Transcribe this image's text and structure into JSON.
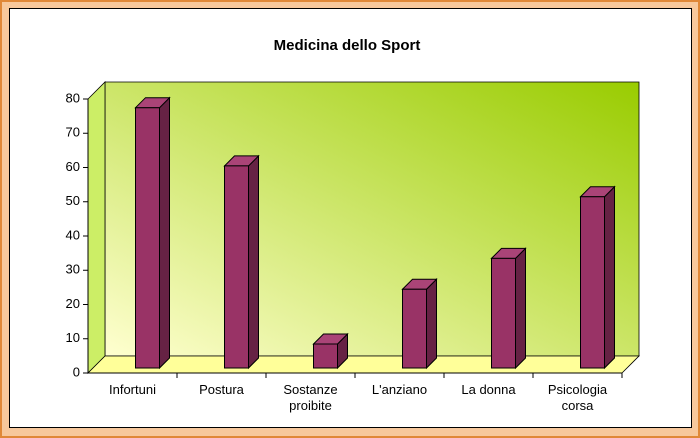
{
  "chart_data": {
    "type": "bar3d",
    "title": "Medicina dello Sport",
    "categories": [
      "Infortuni",
      "Postura",
      "Sostanze proibite",
      "L'anziano",
      "La donna",
      "Psicologia corsa"
    ],
    "values": [
      76,
      59,
      7,
      23,
      32,
      50
    ],
    "color": "#993366",
    "ylim": [
      0,
      80
    ],
    "yticks": [
      0,
      10,
      20,
      30,
      40,
      50,
      60,
      70,
      80
    ],
    "grid": false
  }
}
